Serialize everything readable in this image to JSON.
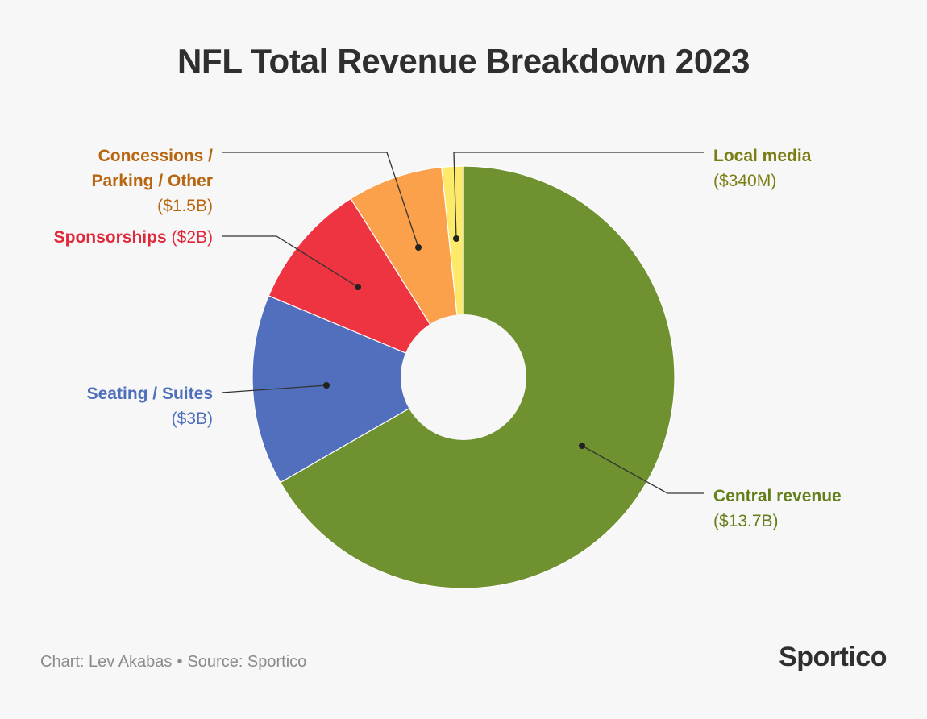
{
  "title": "NFL Total Revenue Breakdown 2023",
  "footer": {
    "chart_credit": "Chart: Lev Akabas",
    "separator": "•",
    "source": "Source: Sportico",
    "brand": "Sportico"
  },
  "chart_data": {
    "type": "pie",
    "title": "NFL Total Revenue Breakdown 2023",
    "unit": "$B",
    "slices": [
      {
        "key": "central",
        "label": "Central revenue",
        "value_label": "($13.7B)",
        "value": 13.7,
        "color": "#6f9130"
      },
      {
        "key": "seating",
        "label": "Seating / Suites",
        "value_label": "($3B)",
        "value": 3.0,
        "color": "#516fbd"
      },
      {
        "key": "sponsorships",
        "label": "Sponsorships",
        "value_label": "($2B)",
        "value": 2.0,
        "color": "#ee3440"
      },
      {
        "key": "concessions",
        "label": "Concessions / Parking / Other",
        "label_lines": [
          "Concessions /",
          "Parking / Other"
        ],
        "value_label": "($1.5B)",
        "value": 1.5,
        "color": "#fba04b"
      },
      {
        "key": "local_media",
        "label": "Local media",
        "value_label": "($340M)",
        "value": 0.34,
        "color": "#fde96a"
      }
    ],
    "label_colors": {
      "central": "#637f1a",
      "seating": "#4f6fbd",
      "sponsorships": "#e0283a",
      "concessions": "#b8650f",
      "local_media": "#7a7d12"
    },
    "hole": true,
    "start_angle": "12 o'clock",
    "direction": "clockwise"
  }
}
